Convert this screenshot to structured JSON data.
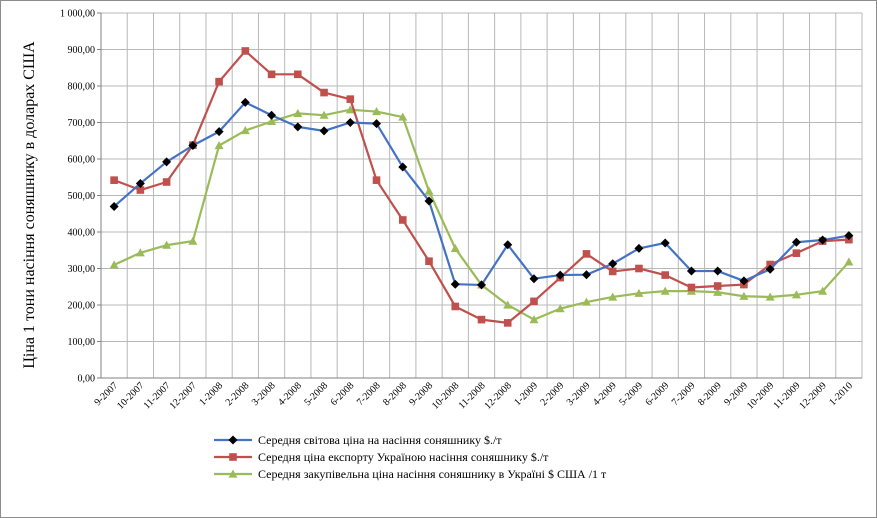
{
  "chart_data": {
    "type": "line",
    "ylabel": "Ціна 1 тони насіння соняшнику в доларах США",
    "xlabel": "",
    "ylim": [
      0,
      1000
    ],
    "ytick_step": 100,
    "yticks": [
      "0,00",
      "100,00",
      "200,00",
      "300,00",
      "400,00",
      "500,00",
      "600,00",
      "700,00",
      "800,00",
      "900,00",
      "1 000,00"
    ],
    "grid": true,
    "legend_position": "bottom",
    "categories": [
      "9-2007",
      "10-2007",
      "11-2007",
      "12-2007",
      "1-2008",
      "2-2008",
      "3-2008",
      "4-2008",
      "5-2008",
      "6-2008",
      "7-2008",
      "8-2008",
      "9-2008",
      "10-2008",
      "11-2008",
      "12-2008",
      "1-2009",
      "2-2009",
      "3-2009",
      "4-2009",
      "5-2009",
      "6-2009",
      "7-2009",
      "8-2009",
      "9-2009",
      "10-2009",
      "11-2009",
      "12-2009",
      "1-2010"
    ],
    "series": [
      {
        "name": "Середня світова ціна на насіння соняшнику $./т",
        "color": "#4472c4",
        "marker": "diamond",
        "marker_color": "#000000",
        "values": [
          470,
          533,
          592,
          637,
          675,
          755,
          720,
          688,
          677,
          700,
          697,
          578,
          485,
          257,
          255,
          365,
          272,
          282,
          283,
          313,
          355,
          370,
          293,
          293,
          266,
          298,
          372,
          378,
          390
        ]
      },
      {
        "name": "Середня ціна експорту Україною насіння соняшнику $./т",
        "color": "#c0504d",
        "marker": "square",
        "marker_color": "#c0504d",
        "values": [
          542,
          515,
          537,
          638,
          812,
          896,
          832,
          832,
          782,
          764,
          542,
          433,
          320,
          196,
          160,
          151,
          210,
          275,
          340,
          292,
          300,
          282,
          248,
          252,
          256,
          311,
          342,
          375,
          379
        ]
      },
      {
        "name": "Середня закупівельна ціна насіння соняшнику в Україні   $ США /1 т",
        "color": "#9bbb59",
        "marker": "triangle",
        "marker_color": "#9bbb59",
        "values": [
          310,
          343,
          364,
          375,
          637,
          678,
          703,
          725,
          720,
          735,
          730,
          715,
          512,
          355,
          255,
          200,
          160,
          190,
          208,
          222,
          232,
          238,
          238,
          235,
          224,
          222,
          228,
          238,
          318
        ]
      }
    ]
  }
}
